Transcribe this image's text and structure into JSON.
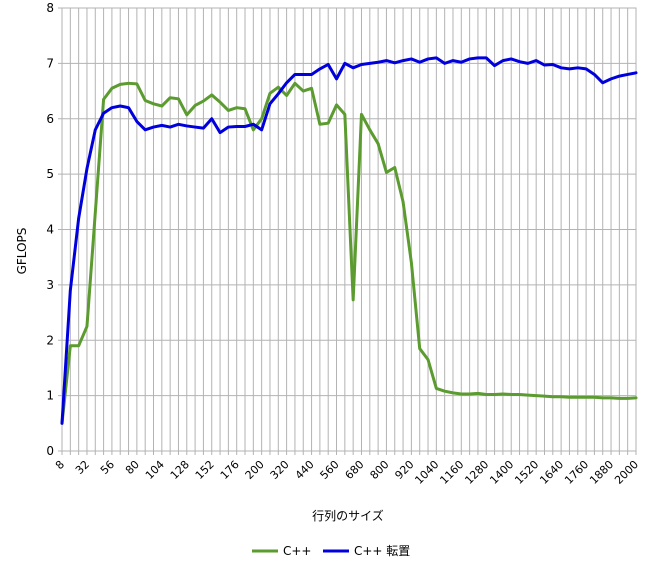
{
  "chart_data": {
    "type": "line",
    "xlabel": "行列のサイズ",
    "ylabel": "GFLOPS",
    "ylim": [
      0,
      8
    ],
    "yticks": [
      "0",
      "1",
      "2",
      "3",
      "4",
      "5",
      "6",
      "7",
      "8"
    ],
    "grid": true,
    "legend_position": "bottom",
    "categories": [
      "8",
      "16",
      "24",
      "32",
      "40",
      "48",
      "56",
      "64",
      "72",
      "80",
      "88",
      "96",
      "104",
      "112",
      "120",
      "128",
      "136",
      "144",
      "152",
      "160",
      "168",
      "176",
      "184",
      "192",
      "200",
      "240",
      "280",
      "320",
      "360",
      "400",
      "440",
      "480",
      "520",
      "560",
      "600",
      "640",
      "680",
      "720",
      "760",
      "800",
      "840",
      "880",
      "920",
      "960",
      "1000",
      "1040",
      "1080",
      "1120",
      "1160",
      "1200",
      "1240",
      "1280",
      "1320",
      "1360",
      "1400",
      "1440",
      "1480",
      "1520",
      "1560",
      "1600",
      "1640",
      "1680",
      "1720",
      "1760",
      "1800",
      "1840",
      "1880",
      "1920",
      "1960",
      "2000"
    ],
    "tick_labels": [
      "8",
      "32",
      "56",
      "80",
      "104",
      "128",
      "152",
      "176",
      "200",
      "320",
      "440",
      "560",
      "680",
      "800",
      "920",
      "1040",
      "1160",
      "1280",
      "1400",
      "1520",
      "1640",
      "1760",
      "1880",
      "2000"
    ],
    "series": [
      {
        "name": "C++",
        "color": "#5B9B2F",
        "values": [
          0.5,
          1.9,
          1.9,
          2.25,
          4.3,
          6.35,
          6.55,
          6.62,
          6.64,
          6.63,
          6.33,
          6.27,
          6.23,
          6.38,
          6.36,
          6.07,
          6.24,
          6.32,
          6.43,
          6.3,
          6.15,
          6.2,
          6.18,
          5.8,
          6.0,
          6.46,
          6.57,
          6.42,
          6.64,
          6.5,
          6.55,
          5.9,
          5.92,
          6.25,
          6.08,
          2.73,
          6.08,
          5.8,
          5.55,
          5.03,
          5.12,
          4.5,
          3.4,
          1.85,
          1.65,
          1.13,
          1.08,
          1.05,
          1.03,
          1.03,
          1.04,
          1.02,
          1.02,
          1.03,
          1.02,
          1.02,
          1.01,
          1.0,
          0.99,
          0.98,
          0.98,
          0.97,
          0.97,
          0.97,
          0.97,
          0.96,
          0.96,
          0.95,
          0.95,
          0.96
        ]
      },
      {
        "name": "C++ 転置",
        "color": "#0000DD",
        "values": [
          0.5,
          2.9,
          4.2,
          5.1,
          5.8,
          6.1,
          6.2,
          6.23,
          6.2,
          5.95,
          5.8,
          5.85,
          5.88,
          5.85,
          5.9,
          5.87,
          5.85,
          5.83,
          6.0,
          5.75,
          5.85,
          5.86,
          5.86,
          5.9,
          5.8,
          6.27,
          6.45,
          6.65,
          6.8,
          6.8,
          6.8,
          6.9,
          6.98,
          6.72,
          7.0,
          6.92,
          6.98,
          7.0,
          7.02,
          7.05,
          7.01,
          7.05,
          7.08,
          7.02,
          7.08,
          7.1,
          7.0,
          7.05,
          7.02,
          7.08,
          7.1,
          7.1,
          6.96,
          7.05,
          7.08,
          7.03,
          7.0,
          7.05,
          6.97,
          6.98,
          6.92,
          6.9,
          6.92,
          6.9,
          6.8,
          6.65,
          6.72,
          6.77,
          6.8,
          6.83
        ]
      }
    ]
  }
}
